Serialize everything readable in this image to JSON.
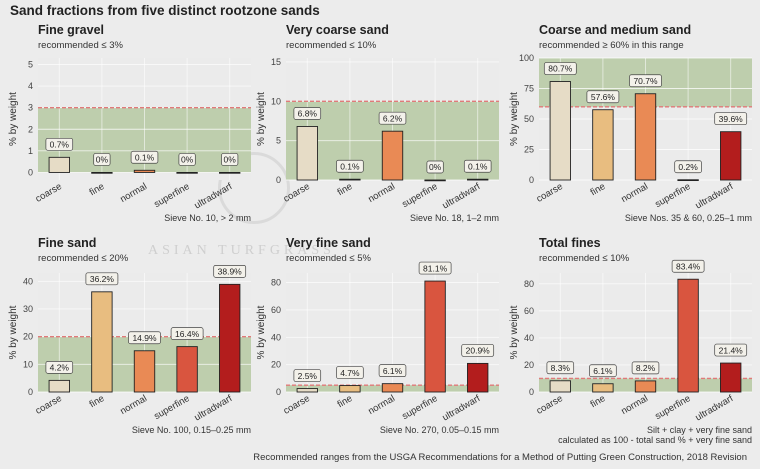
{
  "title": "Sand fractions from five distinct rootzone sands",
  "caption": "Recommended ranges from the USGA Recommendations for a Method of Putting Green Construction, 2018 Revision",
  "watermark": "ASIAN TURFGRASS",
  "colors": {
    "coarse": "#e6dcc6",
    "fine": "#e8bd80",
    "normal": "#e98a55",
    "superfine": "#d9553f",
    "ultradwarf": "#b31d1d",
    "band": "#b9cba6",
    "threshold": "#e07a7a"
  },
  "chart_data": [
    {
      "type": "bar",
      "title": "Fine gravel",
      "subtitle": "recommended ≤ 3%",
      "ylabel": "% by weight",
      "caption": [
        "Sieve No. 10, > 2 mm"
      ],
      "categories": [
        "coarse",
        "fine",
        "normal",
        "superfine",
        "ultradwarf"
      ],
      "values": [
        0.7,
        0,
        0.1,
        0,
        0
      ],
      "labels": [
        "0.7%",
        "0%",
        "0.1%",
        "0%",
        "0%"
      ],
      "ylim": [
        -0.35,
        5.3
      ],
      "yticks": [
        0,
        1,
        2,
        3,
        4,
        5
      ],
      "band": [
        0,
        3
      ],
      "threshold": 3
    },
    {
      "type": "bar",
      "title": "Very coarse sand",
      "subtitle": "recommended ≤ 10%",
      "ylabel": "% by weight",
      "caption": [
        "Sieve No. 18, 1–2 mm"
      ],
      "categories": [
        "coarse",
        "fine",
        "normal",
        "superfine",
        "ultradwarf"
      ],
      "values": [
        6.8,
        0.1,
        6.2,
        0,
        0.1
      ],
      "labels": [
        "6.8%",
        "0.1%",
        "6.2%",
        "0%",
        "0.1%"
      ],
      "ylim": [
        0,
        15.5
      ],
      "yticks": [
        0,
        5,
        10,
        15
      ],
      "band": [
        0,
        10
      ],
      "threshold": 10
    },
    {
      "type": "bar",
      "title": "Coarse and medium sand",
      "subtitle": "recommended ≥ 60% in this range",
      "ylabel": "% by weight",
      "caption": [
        "Sieve Nos. 35 & 60, 0.25–1 mm"
      ],
      "categories": [
        "coarse",
        "fine",
        "normal",
        "superfine",
        "ultradwarf"
      ],
      "values": [
        80.7,
        57.6,
        70.7,
        0.2,
        39.6
      ],
      "labels": [
        "80.7%",
        "57.6%",
        "70.7%",
        "0.2%",
        "39.6%"
      ],
      "ylim": [
        0,
        100
      ],
      "yticks": [
        0,
        25,
        50,
        75,
        100
      ],
      "band": [
        60,
        100
      ],
      "threshold": 60
    },
    {
      "type": "bar",
      "title": "Fine sand",
      "subtitle": "recommended ≤ 20%",
      "ylabel": "% by weight",
      "caption": [
        "Sieve No. 100, 0.15–0.25 mm"
      ],
      "categories": [
        "coarse",
        "fine",
        "normal",
        "superfine",
        "ultradwarf"
      ],
      "values": [
        4.2,
        36.2,
        14.9,
        16.4,
        38.9
      ],
      "labels": [
        "4.2%",
        "36.2%",
        "14.9%",
        "16.4%",
        "38.9%"
      ],
      "ylim": [
        0,
        43
      ],
      "yticks": [
        0,
        10,
        20,
        30,
        40
      ],
      "band": [
        0,
        20
      ],
      "threshold": 20
    },
    {
      "type": "bar",
      "title": "Very fine sand",
      "subtitle": "recommended ≤ 5%",
      "ylabel": "% by weight",
      "caption": [
        "Sieve No. 270, 0.05–0.15 mm"
      ],
      "categories": [
        "coarse",
        "fine",
        "normal",
        "superfine",
        "ultradwarf"
      ],
      "values": [
        2.5,
        4.7,
        6.1,
        81.1,
        20.9
      ],
      "labels": [
        "2.5%",
        "4.7%",
        "6.1%",
        "81.1%",
        "20.9%"
      ],
      "ylim": [
        0,
        87
      ],
      "yticks": [
        0,
        20,
        40,
        60,
        80
      ],
      "band": [
        0,
        5
      ],
      "threshold": 5
    },
    {
      "type": "bar",
      "title": "Total fines",
      "subtitle": "recommended ≤ 10%",
      "ylabel": "% by weight",
      "caption": [
        "Silt + clay + very fine sand",
        "calculated as 100 - total sand % + very fine sand"
      ],
      "categories": [
        "coarse",
        "fine",
        "normal",
        "superfine",
        "ultradwarf"
      ],
      "values": [
        8.3,
        6.1,
        8.2,
        83.4,
        21.4
      ],
      "labels": [
        "8.3%",
        "6.1%",
        "8.2%",
        "83.4%",
        "21.4%"
      ],
      "ylim": [
        0,
        88
      ],
      "yticks": [
        0,
        20,
        40,
        60,
        80
      ],
      "band": [
        0,
        10
      ],
      "threshold": 10
    }
  ]
}
